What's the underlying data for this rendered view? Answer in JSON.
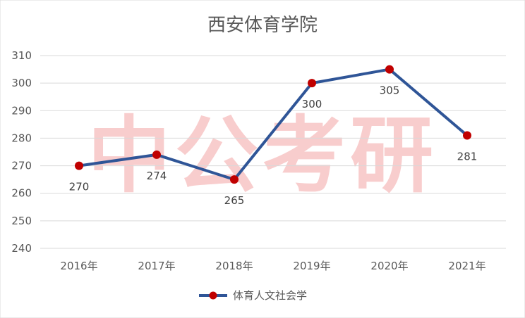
{
  "watermark": "中公考研",
  "colors": {
    "line": "#2F5597",
    "marker": "#C00000",
    "grid": "#D9D9D9",
    "text": "#595959",
    "watermark": "#F4A6A6"
  },
  "chart_data": {
    "type": "line",
    "title": "西安体育学院",
    "categories": [
      "2016年",
      "2017年",
      "2018年",
      "2019年",
      "2020年",
      "2021年"
    ],
    "series": [
      {
        "name": "体育人文社会学",
        "values": [
          270,
          274,
          265,
          300,
          305,
          281
        ]
      }
    ],
    "ylim": [
      240,
      310
    ],
    "yticks": [
      240,
      250,
      260,
      270,
      280,
      290,
      300,
      310
    ],
    "grid": true,
    "legend": "bottom"
  }
}
